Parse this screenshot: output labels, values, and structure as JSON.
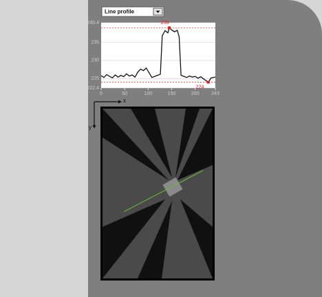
{
  "dropdown": {
    "label": "Line profile"
  },
  "axes_indicator": {
    "x": "x",
    "y": "y"
  },
  "chart_data": {
    "type": "line",
    "x": [
      0,
      6,
      12,
      18,
      24,
      30,
      36,
      42,
      48,
      54,
      60,
      66,
      72,
      78,
      84,
      90,
      96,
      102,
      108,
      114,
      120,
      126,
      130,
      136,
      142,
      145,
      150,
      156,
      162,
      166,
      170,
      176,
      182,
      188,
      194,
      200,
      206,
      212,
      218,
      228,
      234,
      243
    ],
    "series": [
      {
        "name": "Line profile",
        "color": "#111111",
        "values": [
          225.8,
          225.3,
          226.1,
          225.6,
          225.2,
          226.0,
          225.4,
          225.9,
          225.5,
          226.3,
          225.7,
          226.0,
          225.4,
          226.8,
          227.6,
          227.2,
          227.9,
          226.6,
          225.3,
          225.6,
          225.9,
          226.2,
          236.8,
          238.2,
          237.6,
          239,
          238.4,
          237.9,
          238.3,
          236.5,
          225.9,
          225.6,
          225.3,
          225.7,
          225.4,
          225.6,
          225.1,
          225.5,
          224.9,
          224,
          225.2,
          225.4
        ]
      }
    ],
    "xlim": [
      0,
      243
    ],
    "xticks": [
      0,
      50,
      100,
      150,
      200,
      243
    ],
    "ylim": [
      222.4,
      240.4
    ],
    "yticks": [
      222.4,
      225,
      230,
      235,
      240.4
    ],
    "grid": true,
    "annotations": [
      {
        "label": "239",
        "x": 145,
        "y": 239
      },
      {
        "label": "224",
        "x": 228,
        "y": 224
      }
    ]
  }
}
